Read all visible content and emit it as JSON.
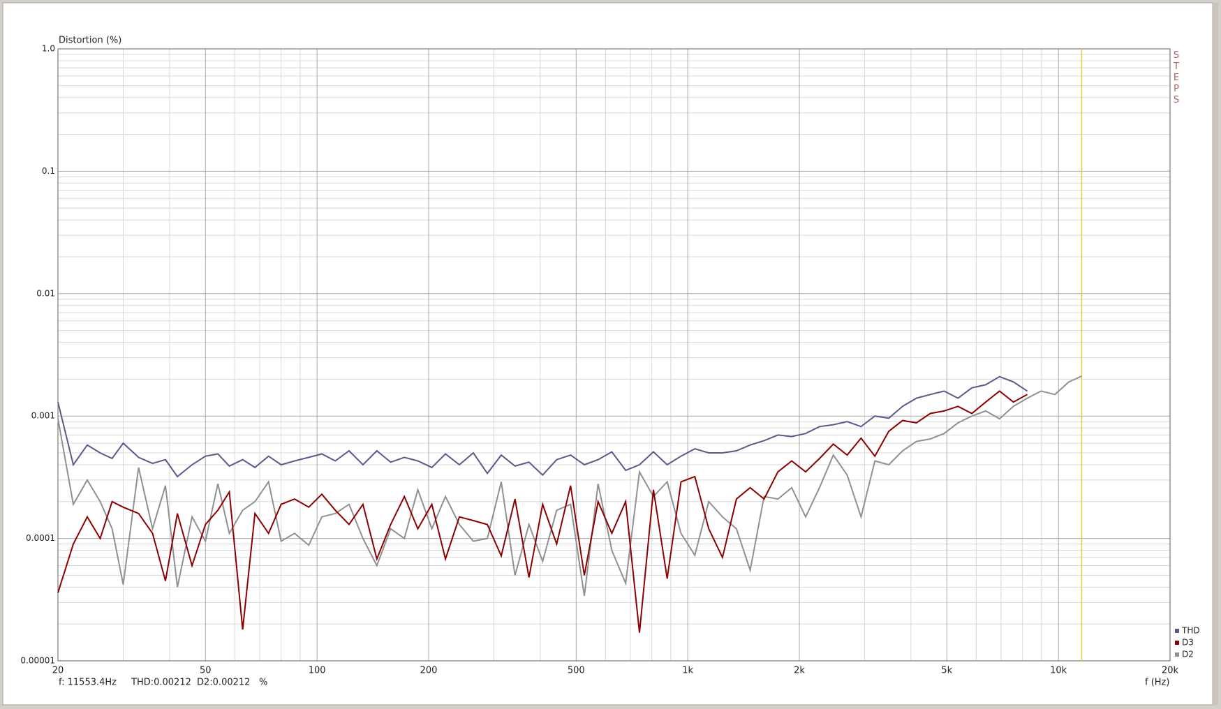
{
  "chart_data": {
    "type": "line",
    "title": "Distortion (%)",
    "x_label": "f (Hz)",
    "side_label": "STEPS",
    "log_x": true,
    "log_y": true,
    "grid": true,
    "legend": "lower right",
    "xlim": [
      20,
      20000
    ],
    "ylim": [
      1e-05,
      1
    ],
    "xticks": [
      20,
      50,
      100,
      200,
      500,
      {
        "value": 1000,
        "label": "1k"
      },
      {
        "value": 2000,
        "label": "2k"
      },
      {
        "value": 5000,
        "label": "5k"
      },
      {
        "value": 10000,
        "label": "10k"
      },
      {
        "value": 20000,
        "label": "20k"
      }
    ],
    "xminor": [
      30,
      40,
      60,
      70,
      80,
      90,
      300,
      400,
      600,
      700,
      800,
      900,
      3000,
      4000,
      6000,
      7000,
      8000,
      9000
    ],
    "yticks": [
      {
        "value": 1,
        "label": "1.0"
      },
      0.1,
      0.01,
      0.001,
      0.0001,
      {
        "value": 1e-05,
        "label": "0.00001"
      }
    ],
    "yminor": [
      2e-05,
      3e-05,
      4e-05,
      5e-05,
      6e-05,
      7e-05,
      8e-05,
      9e-05,
      0.0002,
      0.0003,
      0.0004,
      0.0005,
      0.0006,
      0.0007,
      0.0008,
      0.0009,
      0.002,
      0.003,
      0.004,
      0.005,
      0.006,
      0.007,
      0.008,
      0.009,
      0.02,
      0.03,
      0.04,
      0.05,
      0.06,
      0.07,
      0.08,
      0.09,
      0.2,
      0.3,
      0.4,
      0.5,
      0.6,
      0.7,
      0.8,
      0.9
    ],
    "cursor_x": 11553.4,
    "cursor_color": "#e0d040",
    "status": [
      "f: 11553.4Hz",
      "THD:0.00212",
      "D2:0.00212",
      "%"
    ],
    "x": [
      20,
      22,
      24,
      26,
      28,
      30,
      33,
      36,
      39,
      42,
      46,
      50,
      54,
      58,
      63,
      68,
      74,
      80,
      87,
      95,
      103,
      112,
      122,
      133,
      145,
      158,
      172,
      187,
      204,
      222,
      242,
      264,
      288,
      314,
      342,
      373,
      406,
      443,
      483,
      526,
      573,
      624,
      680,
      741,
      808,
      880,
      959,
      1045,
      1139,
      1241,
      1353,
      1474,
      1607,
      1751,
      1908,
      2080,
      2267,
      2470,
      2692,
      2934,
      3198,
      3485,
      3798,
      4139,
      4511,
      4916,
      5358,
      5839,
      6364,
      6936,
      7559,
      8238,
      8978,
      9785,
      10664,
      11553
    ],
    "series": [
      {
        "name": "THD",
        "color": "#5a5a8a",
        "values": [
          0.0013,
          0.0004,
          0.00058,
          0.0005,
          0.00045,
          0.0006,
          0.00046,
          0.00041,
          0.00044,
          0.00032,
          0.0004,
          0.00047,
          0.00049,
          0.00039,
          0.00044,
          0.00038,
          0.00047,
          0.0004,
          0.00043,
          0.00046,
          0.00049,
          0.00043,
          0.00052,
          0.0004,
          0.00052,
          0.00042,
          0.00046,
          0.00043,
          0.00038,
          0.00049,
          0.0004,
          0.0005,
          0.00034,
          0.00048,
          0.00039,
          0.00042,
          0.00033,
          0.00044,
          0.00048,
          0.0004,
          0.00044,
          0.00051,
          0.00036,
          0.0004,
          0.00051,
          0.0004,
          0.00047,
          0.00054,
          0.0005,
          0.0005,
          0.00052,
          0.00058,
          0.00063,
          0.0007,
          0.00068,
          0.00072,
          0.00082,
          0.00085,
          0.0009,
          0.00082,
          0.001,
          0.00096,
          0.0012,
          0.0014,
          0.0015,
          0.0016,
          0.0014,
          0.0017,
          0.0018,
          0.0021,
          0.0019,
          0.0016,
          null,
          null,
          null,
          null
        ]
      },
      {
        "name": "D3",
        "color": "#8b0000",
        "values": [
          3.6e-05,
          9e-05,
          0.00015,
          0.0001,
          0.0002,
          0.00018,
          0.00016,
          0.00011,
          4.5e-05,
          0.00016,
          6e-05,
          0.00013,
          0.00017,
          0.00024,
          1.8e-05,
          0.00016,
          0.00011,
          0.00019,
          0.00021,
          0.00018,
          0.00023,
          0.00017,
          0.00013,
          0.00019,
          6.8e-05,
          0.00013,
          0.00022,
          0.00012,
          0.00019,
          6.8e-05,
          0.00015,
          0.00014,
          0.00013,
          7.2e-05,
          0.00021,
          4.8e-05,
          0.00019,
          9e-05,
          0.00027,
          5e-05,
          0.0002,
          0.00011,
          0.0002,
          1.7e-05,
          0.00025,
          4.7e-05,
          0.00029,
          0.00032,
          0.00012,
          7e-05,
          0.00021,
          0.00026,
          0.00021,
          0.00035,
          0.00043,
          0.00035,
          0.00045,
          0.00059,
          0.00048,
          0.00066,
          0.00047,
          0.00075,
          0.00092,
          0.00088,
          0.00105,
          0.0011,
          0.0012,
          0.00105,
          0.0013,
          0.0016,
          0.0013,
          0.0015,
          null,
          null,
          null,
          null
        ]
      },
      {
        "name": "D2",
        "color": "#909090",
        "values": [
          0.00095,
          0.00019,
          0.0003,
          0.0002,
          0.00012,
          4.2e-05,
          0.00038,
          0.00012,
          0.00027,
          4e-05,
          0.00015,
          9.5e-05,
          0.00028,
          0.00011,
          0.00017,
          0.0002,
          0.00029,
          9.5e-05,
          0.00011,
          8.8e-05,
          0.00015,
          0.00016,
          0.00019,
          0.0001,
          6e-05,
          0.00012,
          0.0001,
          0.00025,
          0.00012,
          0.00022,
          0.00013,
          9.5e-05,
          0.0001,
          0.00029,
          5e-05,
          0.00013,
          6.5e-05,
          0.00017,
          0.00019,
          3.4e-05,
          0.00028,
          8e-05,
          4.3e-05,
          0.00035,
          0.00022,
          0.00029,
          0.00011,
          7.3e-05,
          0.0002,
          0.00015,
          0.00012,
          5.5e-05,
          0.00022,
          0.00021,
          0.00026,
          0.00015,
          0.00026,
          0.00048,
          0.00033,
          0.00015,
          0.00043,
          0.0004,
          0.00052,
          0.00062,
          0.00065,
          0.00072,
          0.00088,
          0.001,
          0.0011,
          0.00095,
          0.0012,
          0.0014,
          0.0016,
          0.0015,
          0.0019,
          0.00212
        ]
      }
    ]
  }
}
